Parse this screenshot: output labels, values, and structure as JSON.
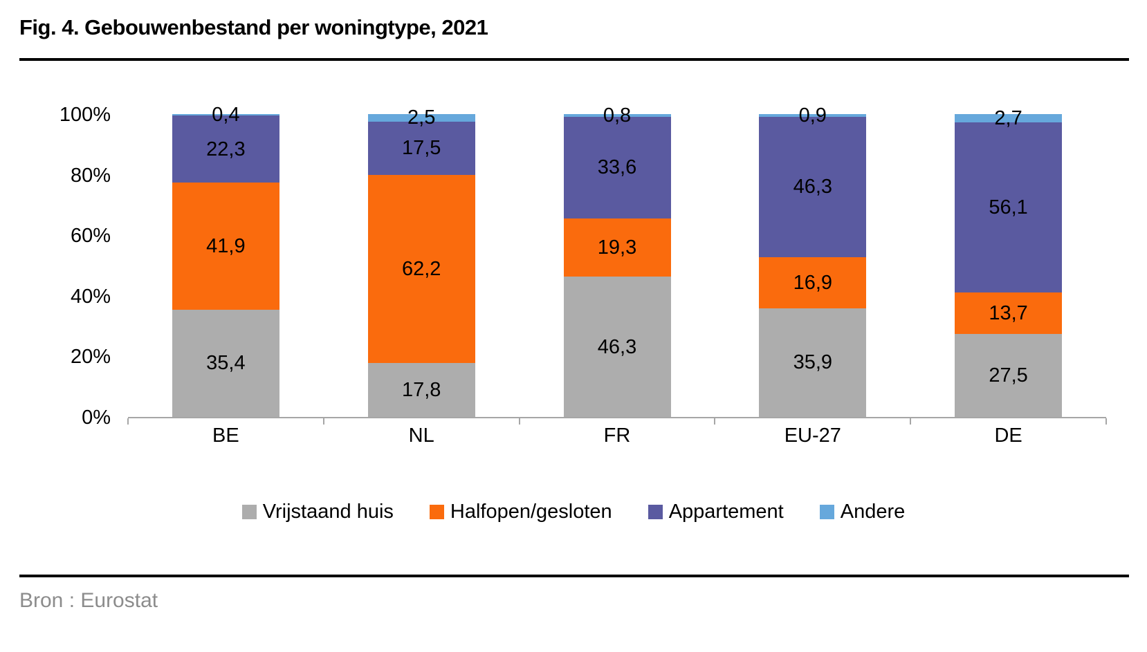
{
  "title": "Fig. 4. Gebouwenbestand per woningtype, 2021",
  "source": "Bron : Eurostat",
  "colors": {
    "axis": "#A6A6A6",
    "rule": "#000000",
    "source_text": "#8C8C8C",
    "gray_series": "#ADADAD",
    "orange_series": "#FA6B0D",
    "purple_series": "#5A5AA0",
    "blue_series": "#66A8DC"
  },
  "chart_data": {
    "type": "bar",
    "stacked": true,
    "grid": false,
    "legend_position": "bottom",
    "title": "Fig. 4. Gebouwenbestand per woningtype, 2021",
    "xlabel": "",
    "ylabel": "",
    "ylim": [
      0,
      100
    ],
    "y_ticks": [
      "0%",
      "20%",
      "40%",
      "60%",
      "80%",
      "100%"
    ],
    "categories": [
      "BE",
      "NL",
      "FR",
      "EU-27",
      "DE"
    ],
    "series": [
      {
        "name": "Vrijstaand huis",
        "color": "#ADADAD",
        "values": [
          35.4,
          17.8,
          46.3,
          35.9,
          27.5
        ],
        "labels": [
          "35,4",
          "17,8",
          "46,3",
          "35,9",
          "27,5"
        ]
      },
      {
        "name": "Halfopen/gesloten",
        "color": "#FA6B0D",
        "values": [
          41.9,
          62.2,
          19.3,
          16.9,
          13.7
        ],
        "labels": [
          "41,9",
          "62,2",
          "19,3",
          "16,9",
          "13,7"
        ]
      },
      {
        "name": "Appartement",
        "color": "#5A5AA0",
        "values": [
          22.3,
          17.5,
          33.6,
          46.3,
          56.1
        ],
        "labels": [
          "22,3",
          "17,5",
          "33,6",
          "46,3",
          "56,1"
        ]
      },
      {
        "name": "Andere",
        "color": "#66A8DC",
        "values": [
          0.4,
          2.5,
          0.8,
          0.9,
          2.7
        ],
        "labels": [
          "0,4",
          "2,5",
          "0,8",
          "0,9",
          "2,7"
        ]
      }
    ]
  }
}
